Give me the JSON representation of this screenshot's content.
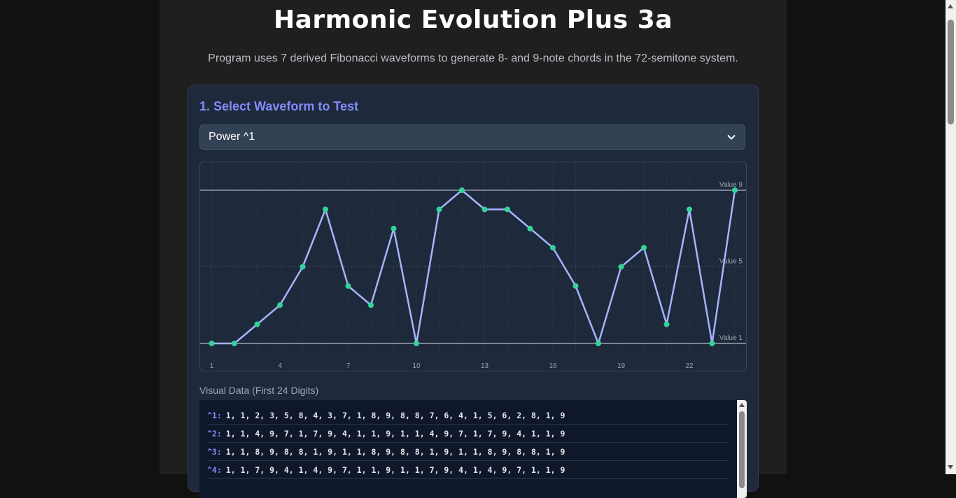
{
  "header": {
    "title": "Harmonic Evolution Plus 3a",
    "subtitle": "Program uses 7 derived Fibonacci waveforms to generate 8- and 9-note chords in the 72-semitone system."
  },
  "panel": {
    "section_title": "1. Select Waveform to Test",
    "select": {
      "selected": "Power ^1",
      "icon": "chevron-down-icon"
    }
  },
  "chart_data": {
    "type": "line",
    "x": [
      1,
      2,
      3,
      4,
      5,
      6,
      7,
      8,
      9,
      10,
      11,
      12,
      13,
      14,
      15,
      16,
      17,
      18,
      19,
      20,
      21,
      22,
      23,
      24
    ],
    "values": [
      1,
      1,
      2,
      3,
      5,
      8,
      4,
      3,
      7,
      1,
      8,
      9,
      8,
      8,
      7,
      6,
      4,
      1,
      5,
      6,
      2,
      8,
      1,
      9
    ],
    "x_tick_labels": [
      "1",
      "4",
      "7",
      "10",
      "13",
      "16",
      "19",
      "22"
    ],
    "ylim": [
      1,
      9
    ],
    "reference_lines": [
      {
        "value": 9,
        "label": "Value 9"
      },
      {
        "value": 5,
        "label": "Value 5"
      },
      {
        "value": 1,
        "label": "Value 1"
      }
    ],
    "grid": true,
    "line_color": "#a5b4fc",
    "point_color": "#34d399"
  },
  "visual_data": {
    "label": "Visual Data (First 24 Digits)",
    "rows": [
      {
        "label": "^1:",
        "values": "1, 1, 2, 3, 5, 8, 4, 3, 7, 1, 8, 9, 8, 8, 7, 6, 4, 1, 5, 6, 2, 8, 1, 9"
      },
      {
        "label": "^2:",
        "values": "1, 1, 4, 9, 7, 1, 7, 9, 4, 1, 1, 9, 1, 1, 4, 9, 7, 1, 7, 9, 4, 1, 1, 9"
      },
      {
        "label": "^3:",
        "values": "1, 1, 8, 9, 8, 8, 1, 9, 1, 1, 8, 9, 8, 8, 1, 9, 1, 1, 8, 9, 8, 8, 1, 9"
      },
      {
        "label": "^4:",
        "values": "1, 1, 7, 9, 4, 1, 4, 9, 7, 1, 1, 9, 1, 1, 7, 9, 4, 1, 4, 9, 7, 1, 1, 9"
      }
    ]
  }
}
